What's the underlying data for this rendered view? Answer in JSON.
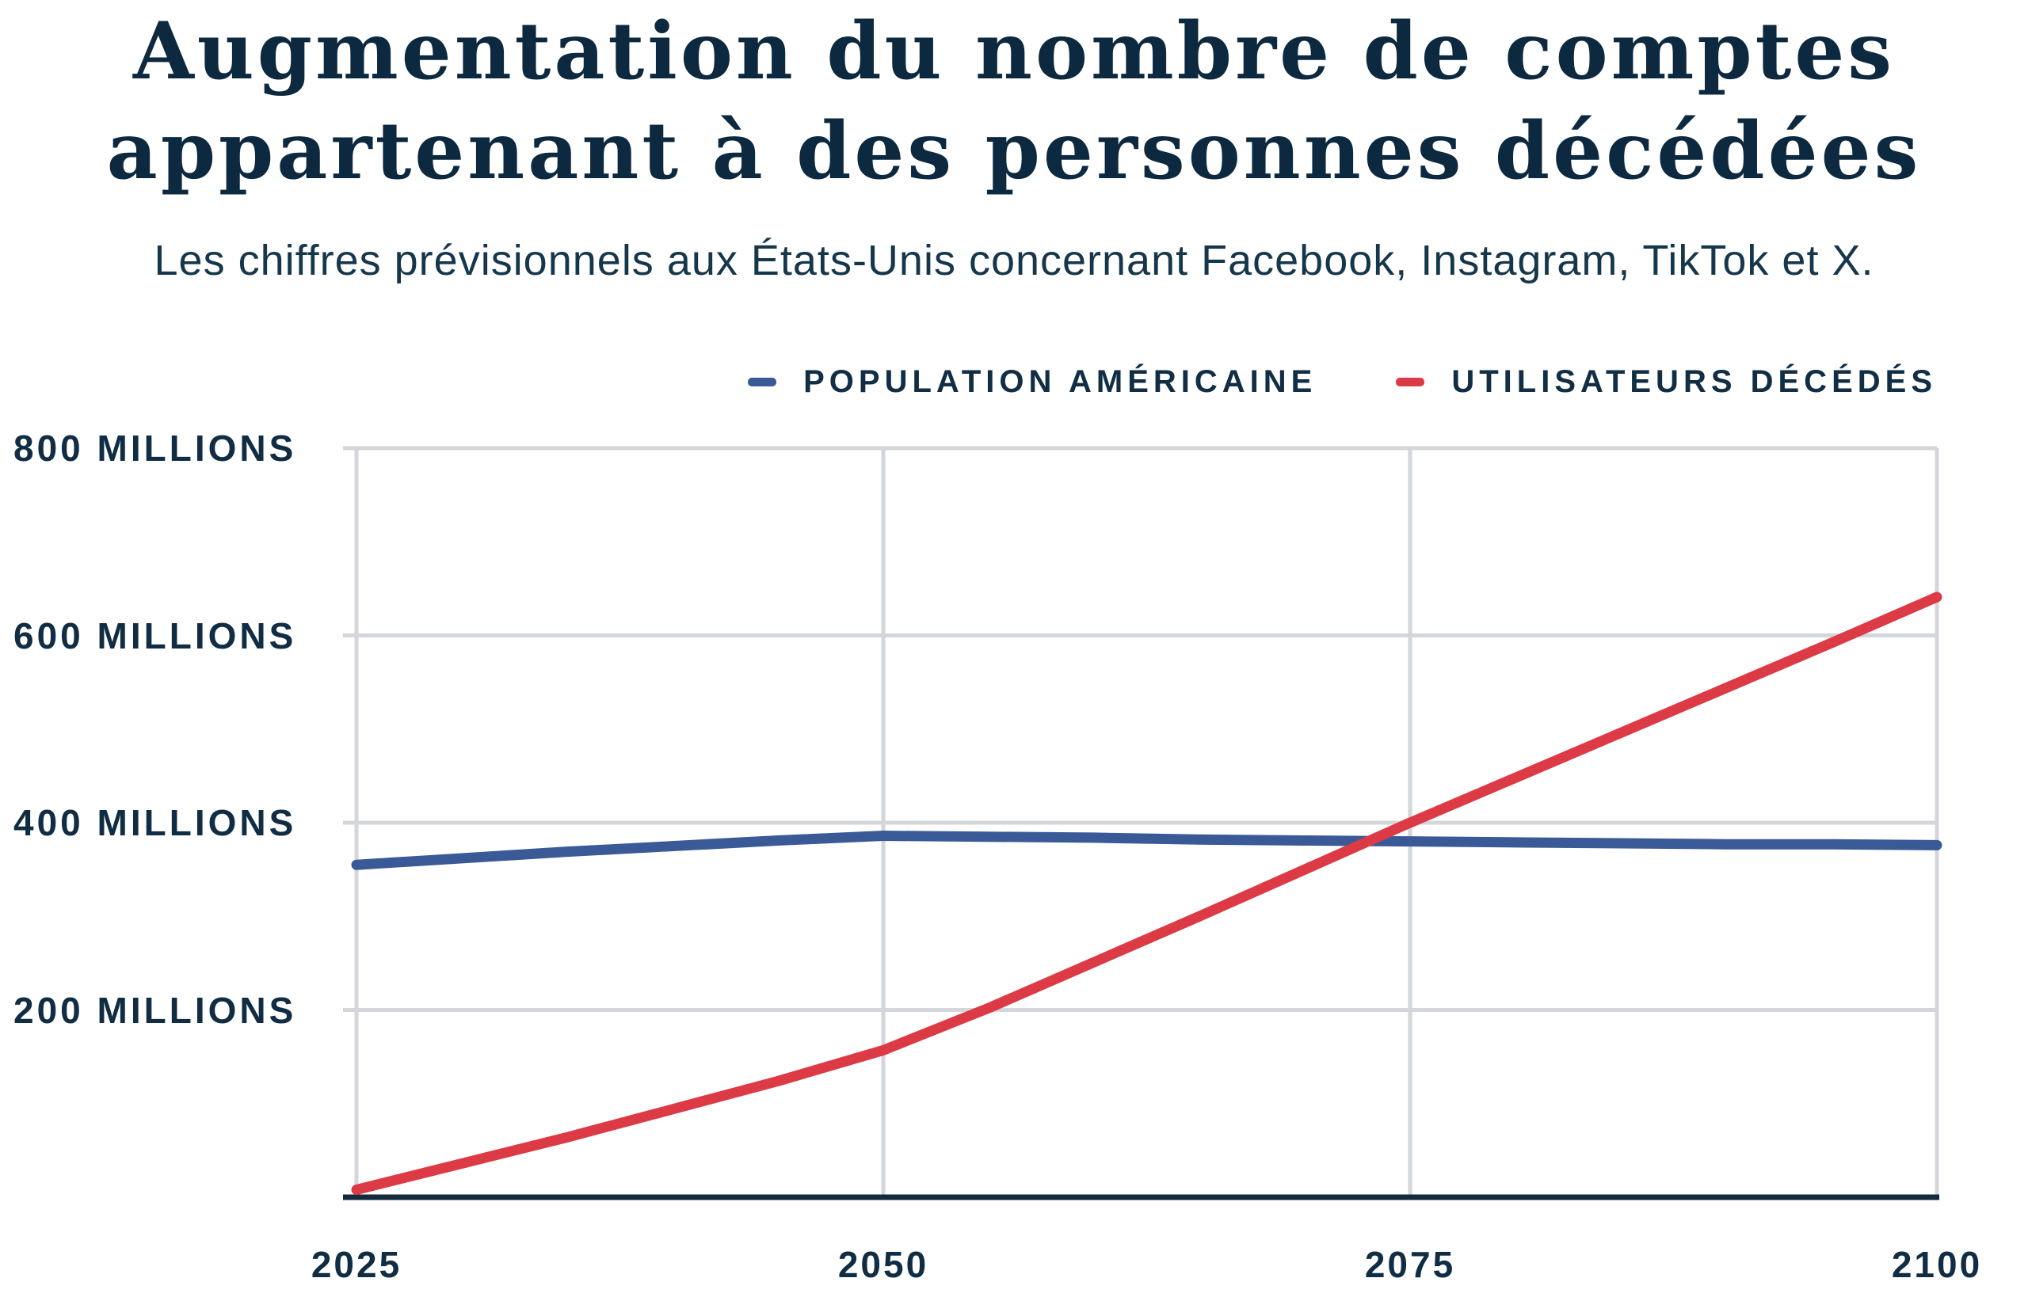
{
  "header": {
    "title_line1": "Augmentation du nombre de comptes",
    "title_line2": "appartenant à des personnes décédées",
    "subtitle": "Les chiffres prévisionnels aux États-Unis concernant Facebook, Instagram, TikTok et X."
  },
  "legend": {
    "items": [
      {
        "label": "POPULATION AMÉRICAINE",
        "color": "#3a5a97"
      },
      {
        "label": "UTILISATEURS DÉCÉDÉS",
        "color": "#dc3a45"
      }
    ]
  },
  "chart_data": {
    "type": "line",
    "title": "Augmentation du nombre de comptes appartenant à des personnes décédées",
    "subtitle": "Les chiffres prévisionnels aux États-Unis concernant Facebook, Instagram, TikTok et X.",
    "x": [
      2025,
      2030,
      2035,
      2040,
      2045,
      2050,
      2055,
      2060,
      2065,
      2070,
      2075,
      2080,
      2085,
      2090,
      2095,
      2100
    ],
    "series": [
      {
        "name": "POPULATION AMÉRICAINE",
        "color": "#3a5a97",
        "values": [
          355,
          362,
          369,
          375,
          381,
          386,
          385,
          384,
          382,
          381,
          380,
          379,
          378,
          377,
          377,
          376
        ]
      },
      {
        "name": "UTILISATEURS DÉCÉDÉS",
        "color": "#dc3a45",
        "values": [
          8,
          36,
          64,
          94,
          124,
          157,
          202,
          251,
          300,
          350,
          400,
          448,
          496,
          544,
          592,
          641
        ]
      }
    ],
    "unit": "millions",
    "xlim": [
      2025,
      2100
    ],
    "ylim": [
      0,
      800
    ],
    "grid": true,
    "legend_position": "top-right",
    "x_ticks": [
      {
        "value": 2025,
        "label": "2025"
      },
      {
        "value": 2050,
        "label": "2050"
      },
      {
        "value": 2075,
        "label": "2075"
      },
      {
        "value": 2100,
        "label": "2100"
      }
    ],
    "y_ticks": [
      {
        "value": 800,
        "label": "800 MILLIONS"
      },
      {
        "value": 600,
        "label": "600 MILLIONS"
      },
      {
        "value": 400,
        "label": "400 MILLIONS"
      },
      {
        "value": 200,
        "label": "200 MILLIONS"
      }
    ],
    "colors": {
      "grid": "#d3d6da",
      "axis": "#142b3d",
      "tick_text": "#102d43"
    }
  }
}
